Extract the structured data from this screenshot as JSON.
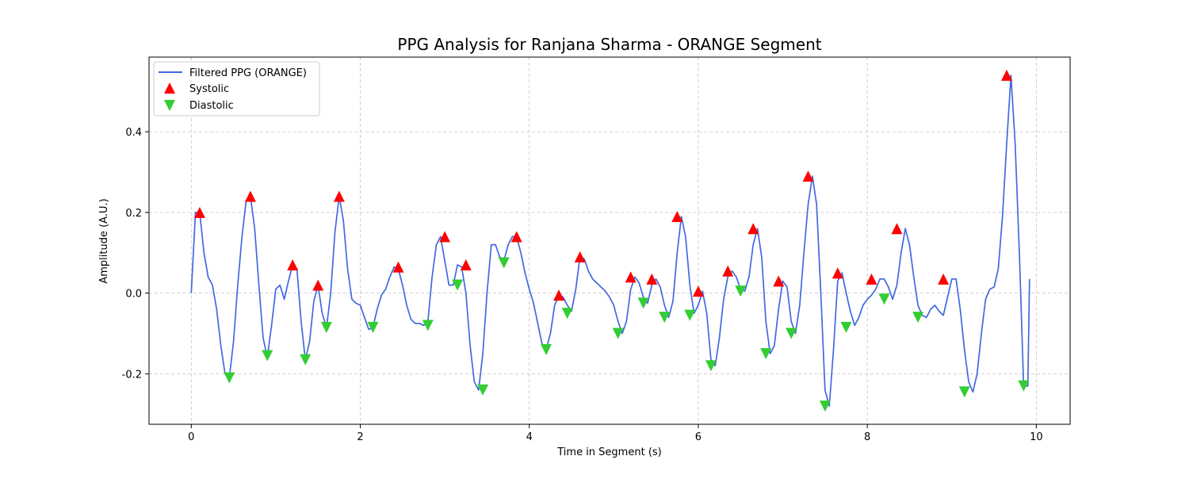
{
  "chart_data": {
    "type": "line",
    "title": "PPG Analysis for Ranjana Sharma - ORANGE Segment",
    "xlabel": "Time in Segment (s)",
    "ylabel": "Amplitude (A.U.)",
    "xlim": [
      -0.5,
      10.4
    ],
    "ylim": [
      -0.325,
      0.585
    ],
    "xticks": [
      0,
      2,
      4,
      6,
      8,
      10
    ],
    "yticks": [
      -0.2,
      0.0,
      0.2,
      0.4
    ],
    "grid": true,
    "legend_position": "top-left",
    "series": [
      {
        "name": "Filtered PPG (ORANGE)",
        "color": "#4169e1",
        "x": [
          0.0,
          0.05,
          0.1,
          0.15,
          0.2,
          0.25,
          0.3,
          0.35,
          0.4,
          0.45,
          0.5,
          0.55,
          0.6,
          0.65,
          0.7,
          0.75,
          0.8,
          0.85,
          0.9,
          0.95,
          1.0,
          1.05,
          1.1,
          1.15,
          1.2,
          1.25,
          1.3,
          1.35,
          1.4,
          1.45,
          1.5,
          1.55,
          1.6,
          1.65,
          1.7,
          1.75,
          1.8,
          1.85,
          1.9,
          1.95,
          2.0,
          2.05,
          2.1,
          2.15,
          2.2,
          2.25,
          2.3,
          2.35,
          2.4,
          2.45,
          2.5,
          2.55,
          2.6,
          2.65,
          2.7,
          2.75,
          2.8,
          2.85,
          2.9,
          2.95,
          3.0,
          3.05,
          3.1,
          3.15,
          3.2,
          3.25,
          3.3,
          3.35,
          3.4,
          3.45,
          3.5,
          3.55,
          3.6,
          3.65,
          3.7,
          3.75,
          3.8,
          3.85,
          3.9,
          3.95,
          4.0,
          4.05,
          4.1,
          4.15,
          4.2,
          4.25,
          4.3,
          4.35,
          4.4,
          4.45,
          4.5,
          4.55,
          4.6,
          4.65,
          4.7,
          4.75,
          4.8,
          4.85,
          4.9,
          4.95,
          5.0,
          5.05,
          5.1,
          5.15,
          5.2,
          5.25,
          5.3,
          5.35,
          5.4,
          5.45,
          5.5,
          5.55,
          5.6,
          5.65,
          5.7,
          5.75,
          5.8,
          5.85,
          5.9,
          5.95,
          6.0,
          6.05,
          6.1,
          6.15,
          6.2,
          6.25,
          6.3,
          6.35,
          6.4,
          6.45,
          6.5,
          6.55,
          6.6,
          6.65,
          6.7,
          6.75,
          6.8,
          6.85,
          6.9,
          6.95,
          7.0,
          7.05,
          7.1,
          7.15,
          7.2,
          7.25,
          7.3,
          7.35,
          7.4,
          7.45,
          7.5,
          7.55,
          7.6,
          7.65,
          7.7,
          7.75,
          7.8,
          7.85,
          7.9,
          7.95,
          8.0,
          8.05,
          8.1,
          8.15,
          8.2,
          8.25,
          8.3,
          8.35,
          8.4,
          8.45,
          8.5,
          8.55,
          8.6,
          8.65,
          8.7,
          8.75,
          8.8,
          8.85,
          8.9,
          8.95,
          9.0,
          9.05,
          9.1,
          9.15,
          9.2,
          9.25,
          9.3,
          9.35,
          9.4,
          9.45,
          9.5,
          9.55,
          9.6,
          9.65,
          9.7,
          9.75,
          9.8,
          9.85,
          9.9,
          9.92
        ],
        "y": [
          0.0,
          0.2,
          0.2,
          0.1,
          0.04,
          0.02,
          -0.04,
          -0.13,
          -0.2,
          -0.21,
          -0.12,
          0.02,
          0.14,
          0.23,
          0.24,
          0.16,
          0.02,
          -0.11,
          -0.16,
          -0.08,
          0.01,
          0.02,
          -0.015,
          0.03,
          0.07,
          0.06,
          -0.07,
          -0.165,
          -0.12,
          -0.02,
          0.02,
          -0.05,
          -0.085,
          0.0,
          0.15,
          0.24,
          0.18,
          0.06,
          -0.015,
          -0.025,
          -0.03,
          -0.06,
          -0.09,
          -0.085,
          -0.04,
          -0.005,
          0.01,
          0.04,
          0.065,
          0.06,
          0.02,
          -0.03,
          -0.065,
          -0.075,
          -0.075,
          -0.08,
          -0.07,
          0.04,
          0.12,
          0.14,
          0.08,
          0.02,
          0.02,
          0.07,
          0.065,
          0.0,
          -0.13,
          -0.22,
          -0.24,
          -0.15,
          0.0,
          0.12,
          0.12,
          0.09,
          0.08,
          0.12,
          0.14,
          0.14,
          0.1,
          0.05,
          0.01,
          -0.025,
          -0.075,
          -0.125,
          -0.14,
          -0.1,
          -0.03,
          -0.005,
          -0.01,
          -0.03,
          -0.045,
          0.01,
          0.09,
          0.085,
          0.055,
          0.035,
          0.025,
          0.015,
          0.005,
          -0.01,
          -0.03,
          -0.07,
          -0.1,
          -0.07,
          0.01,
          0.04,
          0.025,
          -0.01,
          -0.025,
          0.02,
          0.035,
          0.015,
          -0.03,
          -0.06,
          -0.02,
          0.1,
          0.19,
          0.14,
          0.02,
          -0.05,
          -0.03,
          0.005,
          -0.05,
          -0.165,
          -0.18,
          -0.11,
          -0.015,
          0.04,
          0.055,
          0.04,
          0.01,
          0.005,
          0.04,
          0.12,
          0.16,
          0.09,
          -0.07,
          -0.15,
          -0.13,
          -0.04,
          0.03,
          0.015,
          -0.07,
          -0.1,
          -0.03,
          0.1,
          0.22,
          0.29,
          0.22,
          0.0,
          -0.24,
          -0.28,
          -0.14,
          0.03,
          0.05,
          0.0,
          -0.045,
          -0.08,
          -0.06,
          -0.03,
          -0.015,
          -0.005,
          0.01,
          0.035,
          0.035,
          0.015,
          -0.015,
          0.02,
          0.1,
          0.16,
          0.12,
          0.04,
          -0.03,
          -0.055,
          -0.06,
          -0.04,
          -0.03,
          -0.045,
          -0.055,
          -0.01,
          0.035,
          0.035,
          -0.04,
          -0.14,
          -0.22,
          -0.245,
          -0.2,
          -0.1,
          -0.015,
          0.01,
          0.015,
          0.06,
          0.19,
          0.37,
          0.54,
          0.37,
          0.1,
          -0.23,
          -0.23,
          0.035
        ]
      },
      {
        "name": "Systolic",
        "color": "#ff0000",
        "marker": "triangle-up",
        "x": [
          0.1,
          0.7,
          1.2,
          1.5,
          1.75,
          2.45,
          3.0,
          3.25,
          3.85,
          4.35,
          4.6,
          5.2,
          5.45,
          5.75,
          6.0,
          6.35,
          6.65,
          6.95,
          7.3,
          7.65,
          8.05,
          8.35,
          8.9,
          9.65
        ],
        "y": [
          0.2,
          0.24,
          0.07,
          0.02,
          0.24,
          0.065,
          0.14,
          0.07,
          0.14,
          -0.005,
          0.09,
          0.04,
          0.035,
          0.19,
          0.005,
          0.055,
          0.16,
          0.03,
          0.29,
          0.05,
          0.035,
          0.16,
          0.035,
          0.54
        ]
      },
      {
        "name": "Diastolic",
        "color": "#32cd32",
        "marker": "triangle-down",
        "x": [
          0.45,
          0.9,
          1.35,
          1.6,
          2.15,
          2.8,
          3.15,
          3.45,
          3.7,
          4.2,
          4.45,
          5.05,
          5.35,
          5.6,
          5.9,
          6.15,
          6.5,
          6.8,
          7.1,
          7.5,
          7.75,
          8.2,
          8.6,
          9.15,
          9.85
        ],
        "y": [
          -0.21,
          -0.155,
          -0.165,
          -0.085,
          -0.085,
          -0.08,
          0.02,
          -0.24,
          0.075,
          -0.14,
          -0.05,
          -0.1,
          -0.025,
          -0.06,
          -0.055,
          -0.18,
          0.005,
          -0.15,
          -0.1,
          -0.28,
          -0.085,
          -0.015,
          -0.06,
          -0.245,
          -0.23
        ]
      }
    ]
  }
}
